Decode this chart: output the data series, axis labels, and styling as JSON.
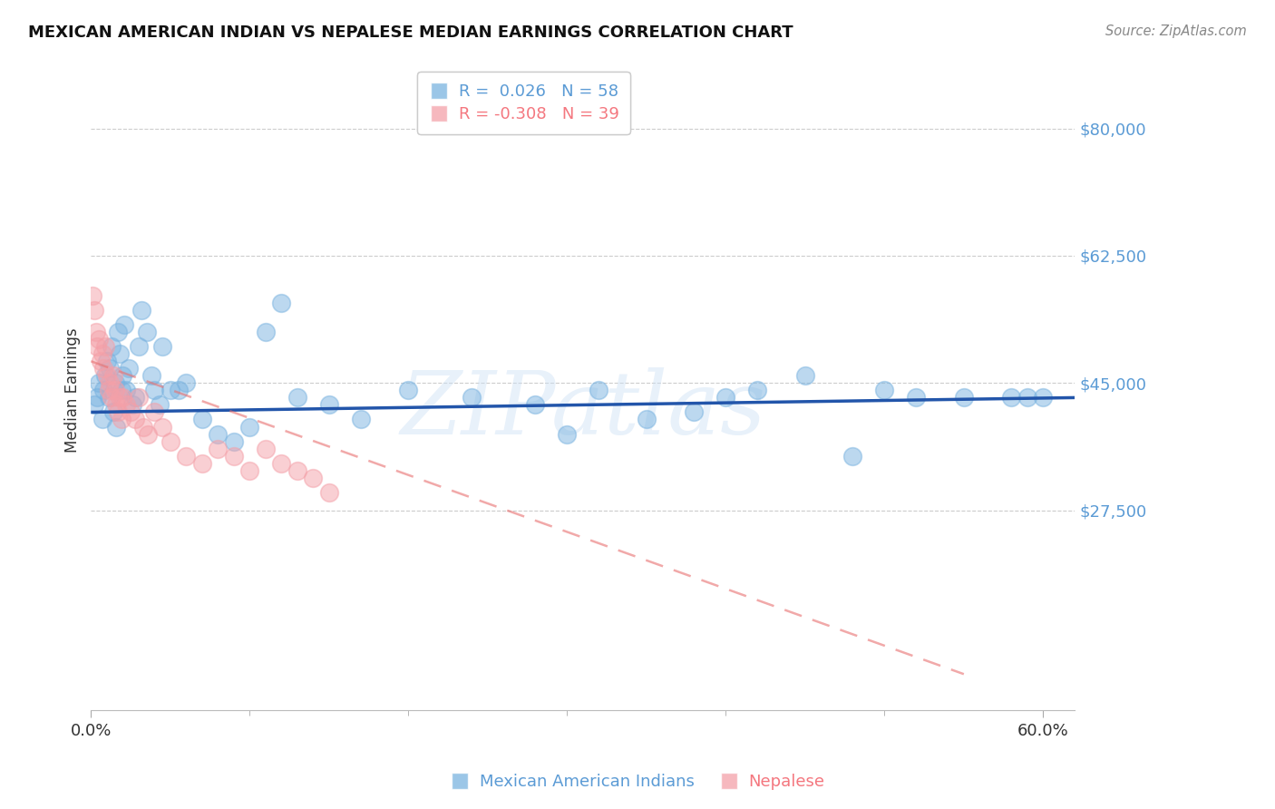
{
  "title": "MEXICAN AMERICAN INDIAN VS NEPALESE MEDIAN EARNINGS CORRELATION CHART",
  "source": "Source: ZipAtlas.com",
  "ylabel": "Median Earnings",
  "ytick_vals": [
    27500,
    45000,
    62500,
    80000
  ],
  "ytick_labels": [
    "$27,500",
    "$45,000",
    "$62,500",
    "$80,000"
  ],
  "ylim": [
    0,
    88000
  ],
  "xlim": [
    0.0,
    0.62
  ],
  "xtick_vals": [
    0.0,
    0.6
  ],
  "xtick_labels": [
    "0.0%",
    "60.0%"
  ],
  "legend_r1_text": "R =  0.026   N = 58",
  "legend_r2_text": "R = -0.308   N = 39",
  "legend_r1_color": "#5b9bd5",
  "legend_r2_color": "#f4777f",
  "blue_color": "#7ab3e0",
  "pink_color": "#f4a0a8",
  "trendline_blue_color": "#2255aa",
  "trendline_pink_color": "#e87070",
  "watermark": "ZIPatlas",
  "blue_scatter_x": [
    0.002,
    0.004,
    0.005,
    0.007,
    0.008,
    0.009,
    0.01,
    0.011,
    0.012,
    0.013,
    0.014,
    0.015,
    0.016,
    0.017,
    0.018,
    0.019,
    0.02,
    0.021,
    0.022,
    0.024,
    0.026,
    0.028,
    0.03,
    0.032,
    0.035,
    0.038,
    0.04,
    0.043,
    0.045,
    0.05,
    0.055,
    0.06,
    0.07,
    0.08,
    0.09,
    0.1,
    0.11,
    0.12,
    0.13,
    0.15,
    0.17,
    0.2,
    0.24,
    0.28,
    0.3,
    0.32,
    0.35,
    0.38,
    0.4,
    0.42,
    0.45,
    0.48,
    0.5,
    0.52,
    0.55,
    0.58,
    0.59,
    0.6
  ],
  "blue_scatter_y": [
    42000,
    43000,
    45000,
    40000,
    44000,
    46000,
    48000,
    43000,
    47000,
    50000,
    41000,
    45000,
    39000,
    52000,
    49000,
    44000,
    46000,
    53000,
    44000,
    47000,
    42000,
    43000,
    50000,
    55000,
    52000,
    46000,
    44000,
    42000,
    50000,
    44000,
    44000,
    45000,
    40000,
    38000,
    37000,
    39000,
    52000,
    56000,
    43000,
    42000,
    40000,
    44000,
    43000,
    42000,
    38000,
    44000,
    40000,
    41000,
    43000,
    44000,
    46000,
    35000,
    44000,
    43000,
    43000,
    43000,
    43000,
    43000
  ],
  "pink_scatter_x": [
    0.001,
    0.002,
    0.003,
    0.004,
    0.005,
    0.006,
    0.007,
    0.008,
    0.009,
    0.01,
    0.011,
    0.012,
    0.013,
    0.014,
    0.015,
    0.016,
    0.017,
    0.018,
    0.019,
    0.02,
    0.022,
    0.025,
    0.028,
    0.03,
    0.033,
    0.036,
    0.04,
    0.045,
    0.05,
    0.06,
    0.07,
    0.08,
    0.09,
    0.1,
    0.11,
    0.12,
    0.13,
    0.14,
    0.15
  ],
  "pink_scatter_y": [
    57000,
    55000,
    52000,
    50000,
    51000,
    48000,
    49000,
    47000,
    50000,
    46000,
    44000,
    45000,
    43000,
    46000,
    44000,
    42000,
    41000,
    43000,
    40000,
    43000,
    42000,
    41000,
    40000,
    43000,
    39000,
    38000,
    41000,
    39000,
    37000,
    35000,
    34000,
    36000,
    35000,
    33000,
    36000,
    34000,
    33000,
    32000,
    30000
  ],
  "blue_trendline_x": [
    0.0,
    0.62
  ],
  "blue_trendline_y": [
    41000,
    43000
  ],
  "pink_trendline_x": [
    0.0,
    0.55
  ],
  "pink_trendline_y": [
    48000,
    5000
  ],
  "legend_label_blue": "Mexican American Indians",
  "legend_label_pink": "Nepalese"
}
